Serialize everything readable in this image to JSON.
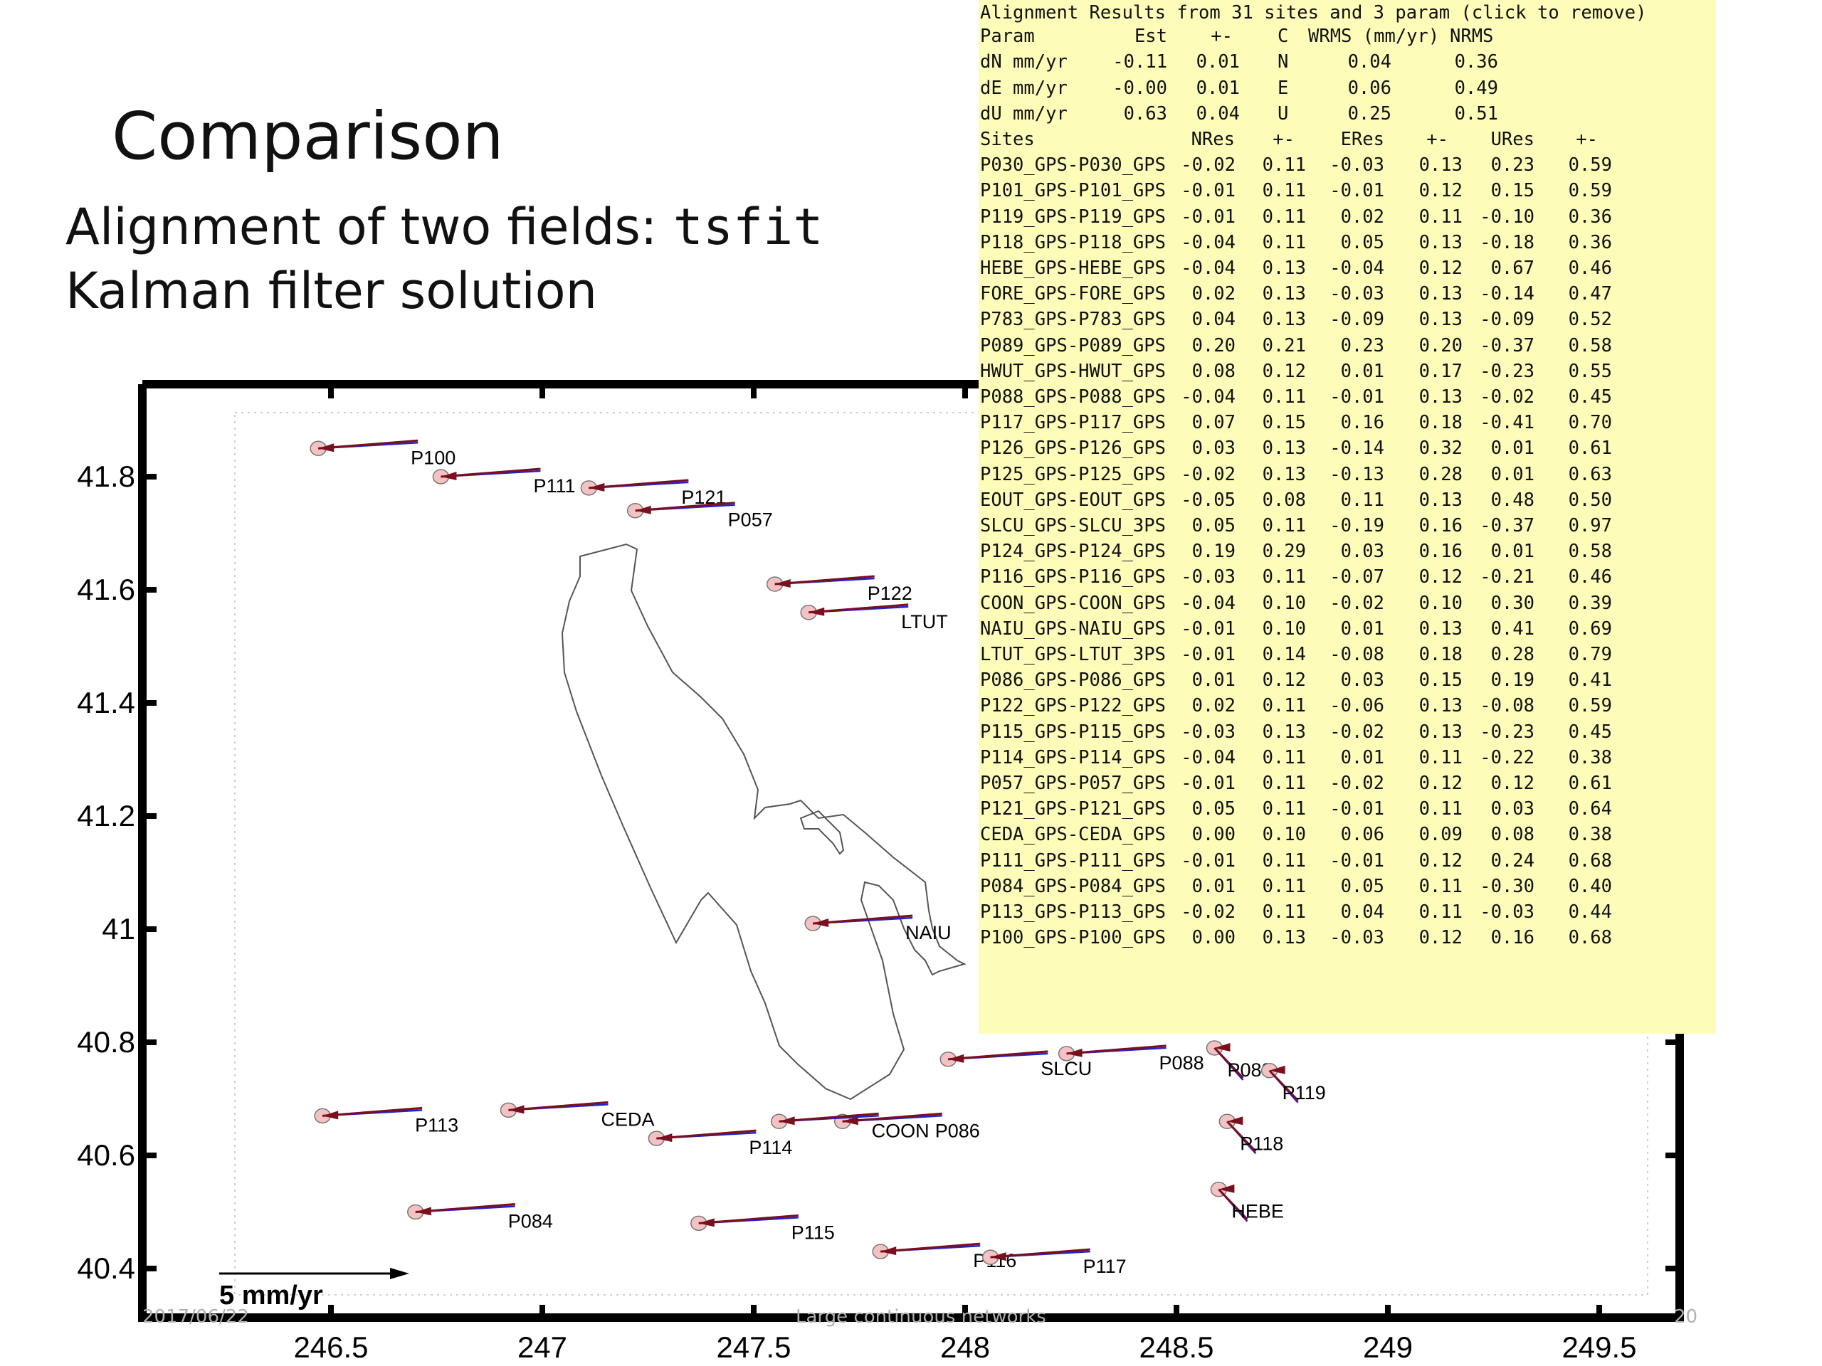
{
  "slide": {
    "title": "Comparison",
    "subtitle_prefix": "Alignment of two fields: ",
    "subtitle_code": "tsfit",
    "subtitle2": "Kalman filter solution",
    "footer_date": "2017/06/22",
    "footer_center": "Large continuous networks",
    "footer_page": "20"
  },
  "map": {
    "x_ticks": [
      "246.5",
      "247",
      "247.5",
      "248",
      "248.5",
      "249",
      "249.5"
    ],
    "y_ticks": [
      "41.8",
      "41.6",
      "41.4",
      "41.2",
      "41",
      "40.8",
      "40.6",
      "40.4"
    ],
    "scale_label": "5 mm/yr",
    "colors": {
      "observed_vector": "#7a0f1e",
      "model_vector": "#2222cc",
      "ellipse": "#f4c2c2",
      "coast": "#555555"
    },
    "sites": [
      {
        "name": "P100",
        "lon": 246.47,
        "lat": 41.85
      },
      {
        "name": "P111",
        "lon": 246.76,
        "lat": 41.8
      },
      {
        "name": "P121",
        "lon": 247.11,
        "lat": 41.78
      },
      {
        "name": "P057",
        "lon": 247.22,
        "lat": 41.74
      },
      {
        "name": "P122",
        "lon": 247.55,
        "lat": 41.61
      },
      {
        "name": "LTUT",
        "lon": 247.63,
        "lat": 41.56
      },
      {
        "name": "NAIU",
        "lon": 247.64,
        "lat": 41.01
      },
      {
        "name": "SLCU",
        "lon": 247.96,
        "lat": 40.77
      },
      {
        "name": "P088",
        "lon": 248.24,
        "lat": 40.78
      },
      {
        "name": "P089",
        "lon": 248.59,
        "lat": 40.79
      },
      {
        "name": "P119",
        "lon": 248.72,
        "lat": 40.75
      },
      {
        "name": "P118",
        "lon": 248.62,
        "lat": 40.66
      },
      {
        "name": "HEBE",
        "lon": 248.6,
        "lat": 40.54
      },
      {
        "name": "P113",
        "lon": 246.48,
        "lat": 40.67
      },
      {
        "name": "CEDA",
        "lon": 246.92,
        "lat": 40.68
      },
      {
        "name": "P114",
        "lon": 247.27,
        "lat": 40.63
      },
      {
        "name": "P086",
        "lon": 247.71,
        "lat": 40.66
      },
      {
        "name": "COON",
        "lon": 247.56,
        "lat": 40.66
      },
      {
        "name": "P084",
        "lon": 246.7,
        "lat": 40.5
      },
      {
        "name": "P115",
        "lon": 247.37,
        "lat": 40.48
      },
      {
        "name": "P116",
        "lon": 247.8,
        "lat": 40.43
      },
      {
        "name": "P117",
        "lon": 248.06,
        "lat": 40.42
      }
    ]
  },
  "alignment": {
    "header": "Alignment Results from 31 sites and 3 param (click to remove)",
    "param_columns": [
      "Param",
      "Est",
      "+-",
      "C",
      "WRMS (mm/yr)",
      "NRMS"
    ],
    "params": [
      [
        "dN mm/yr",
        "-0.11",
        "0.01",
        "N",
        "0.04",
        "0.36"
      ],
      [
        "dE mm/yr",
        "-0.00",
        "0.01",
        "E",
        "0.06",
        "0.49"
      ],
      [
        "dU mm/yr",
        "0.63",
        "0.04",
        "U",
        "0.25",
        "0.51"
      ]
    ],
    "site_columns": [
      "Sites",
      "NRes",
      "+-",
      "ERes",
      "+-",
      "URes",
      "+-"
    ],
    "sites": [
      [
        "P030_GPS-P030_GPS",
        "-0.02",
        "0.11",
        "-0.03",
        "0.13",
        "0.23",
        "0.59"
      ],
      [
        "P101_GPS-P101_GPS",
        "-0.01",
        "0.11",
        "-0.01",
        "0.12",
        "0.15",
        "0.59"
      ],
      [
        "P119_GPS-P119_GPS",
        "-0.01",
        "0.11",
        "0.02",
        "0.11",
        "-0.10",
        "0.36"
      ],
      [
        "P118_GPS-P118_GPS",
        "-0.04",
        "0.11",
        "0.05",
        "0.13",
        "-0.18",
        "0.36"
      ],
      [
        "HEBE_GPS-HEBE_GPS",
        "-0.04",
        "0.13",
        "-0.04",
        "0.12",
        "0.67",
        "0.46"
      ],
      [
        "FORE_GPS-FORE_GPS",
        "0.02",
        "0.13",
        "-0.03",
        "0.13",
        "-0.14",
        "0.47"
      ],
      [
        "P783_GPS-P783_GPS",
        "0.04",
        "0.13",
        "-0.09",
        "0.13",
        "-0.09",
        "0.52"
      ],
      [
        "P089_GPS-P089_GPS",
        "0.20",
        "0.21",
        "0.23",
        "0.20",
        "-0.37",
        "0.58"
      ],
      [
        "HWUT_GPS-HWUT_GPS",
        "0.08",
        "0.12",
        "0.01",
        "0.17",
        "-0.23",
        "0.55"
      ],
      [
        "P088_GPS-P088_GPS",
        "-0.04",
        "0.11",
        "-0.01",
        "0.13",
        "-0.02",
        "0.45"
      ],
      [
        "P117_GPS-P117_GPS",
        "0.07",
        "0.15",
        "0.16",
        "0.18",
        "-0.41",
        "0.70"
      ],
      [
        "P126_GPS-P126_GPS",
        "0.03",
        "0.13",
        "-0.14",
        "0.32",
        "0.01",
        "0.61"
      ],
      [
        "P125_GPS-P125_GPS",
        "-0.02",
        "0.13",
        "-0.13",
        "0.28",
        "0.01",
        "0.63"
      ],
      [
        "EOUT_GPS-EOUT_GPS",
        "-0.05",
        "0.08",
        "0.11",
        "0.13",
        "0.48",
        "0.50"
      ],
      [
        "SLCU_GPS-SLCU_3PS",
        "0.05",
        "0.11",
        "-0.19",
        "0.16",
        "-0.37",
        "0.97"
      ],
      [
        "P124_GPS-P124_GPS",
        "0.19",
        "0.29",
        "0.03",
        "0.16",
        "0.01",
        "0.58"
      ],
      [
        "P116_GPS-P116_GPS",
        "-0.03",
        "0.11",
        "-0.07",
        "0.12",
        "-0.21",
        "0.46"
      ],
      [
        "COON_GPS-COON_GPS",
        "-0.04",
        "0.10",
        "-0.02",
        "0.10",
        "0.30",
        "0.39"
      ],
      [
        "NAIU_GPS-NAIU_GPS",
        "-0.01",
        "0.10",
        "0.01",
        "0.13",
        "0.41",
        "0.69"
      ],
      [
        "LTUT_GPS-LTUT_3PS",
        "-0.01",
        "0.14",
        "-0.08",
        "0.18",
        "0.28",
        "0.79"
      ],
      [
        "P086_GPS-P086_GPS",
        "0.01",
        "0.12",
        "0.03",
        "0.15",
        "0.19",
        "0.41"
      ],
      [
        "P122_GPS-P122_GPS",
        "0.02",
        "0.11",
        "-0.06",
        "0.13",
        "-0.08",
        "0.59"
      ],
      [
        "P115_GPS-P115_GPS",
        "-0.03",
        "0.13",
        "-0.02",
        "0.13",
        "-0.23",
        "0.45"
      ],
      [
        "P114_GPS-P114_GPS",
        "-0.04",
        "0.11",
        "0.01",
        "0.11",
        "-0.22",
        "0.38"
      ],
      [
        "P057_GPS-P057_GPS",
        "-0.01",
        "0.11",
        "-0.02",
        "0.12",
        "0.12",
        "0.61"
      ],
      [
        "P121_GPS-P121_GPS",
        "0.05",
        "0.11",
        "-0.01",
        "0.11",
        "0.03",
        "0.64"
      ],
      [
        "CEDA_GPS-CEDA_GPS",
        "0.00",
        "0.10",
        "0.06",
        "0.09",
        "0.08",
        "0.38"
      ],
      [
        "P111_GPS-P111_GPS",
        "-0.01",
        "0.11",
        "-0.01",
        "0.12",
        "0.24",
        "0.68"
      ],
      [
        "P084_GPS-P084_GPS",
        "0.01",
        "0.11",
        "0.05",
        "0.11",
        "-0.30",
        "0.40"
      ],
      [
        "P113_GPS-P113_GPS",
        "-0.02",
        "0.11",
        "0.04",
        "0.11",
        "-0.03",
        "0.44"
      ],
      [
        "P100_GPS-P100_GPS",
        "0.00",
        "0.13",
        "-0.03",
        "0.12",
        "0.16",
        "0.68"
      ]
    ]
  }
}
